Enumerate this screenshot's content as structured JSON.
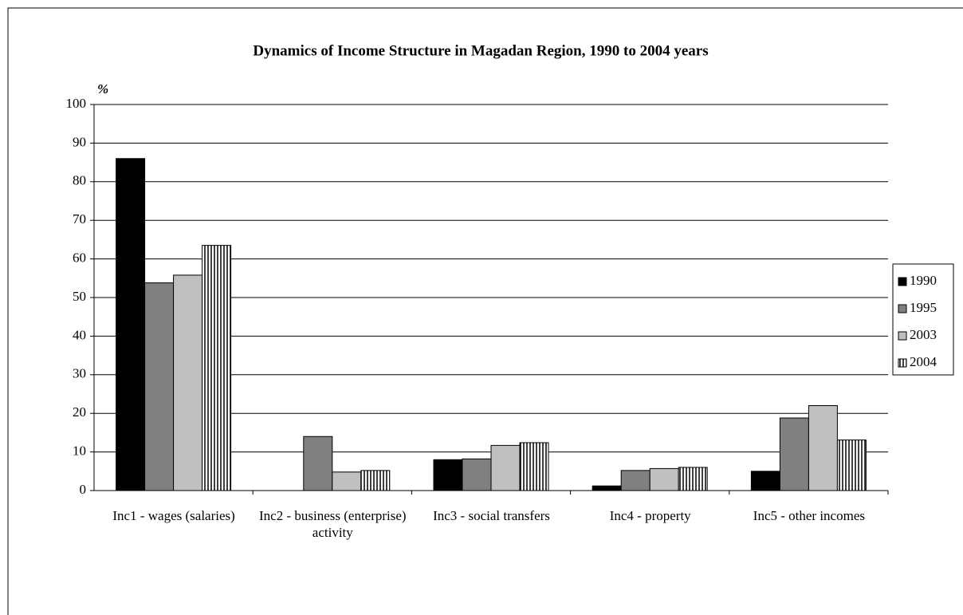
{
  "chart_data": {
    "type": "bar",
    "title": "Dynamics of Income Structure in Magadan Region, 1990 to 2004 years",
    "y_label": "%",
    "categories": [
      "Inc1 - wages (salaries)",
      "Inc2 - business (enterprise) activity",
      "Inc3 -  social transfers",
      "Inc4 - property",
      "Inc5 - other incomes"
    ],
    "series": [
      {
        "name": "1990",
        "color": "#000000",
        "values": [
          86,
          null,
          8,
          1.2,
          5
        ]
      },
      {
        "name": "1995",
        "color": "#808080",
        "values": [
          53.8,
          14,
          8.2,
          5.2,
          18.8
        ]
      },
      {
        "name": "2003",
        "color": "#c0c0c0",
        "values": [
          55.8,
          4.8,
          11.7,
          5.7,
          22
        ]
      },
      {
        "name": "2004",
        "color": "#ffffff",
        "hatch": "vertical",
        "values": [
          63.5,
          5.2,
          12.4,
          6,
          13.1
        ]
      }
    ],
    "ylim": [
      0,
      100
    ],
    "yticks": [
      0,
      10,
      20,
      30,
      40,
      50,
      60,
      70,
      80,
      90,
      100
    ],
    "grid": true,
    "legend": "right"
  }
}
